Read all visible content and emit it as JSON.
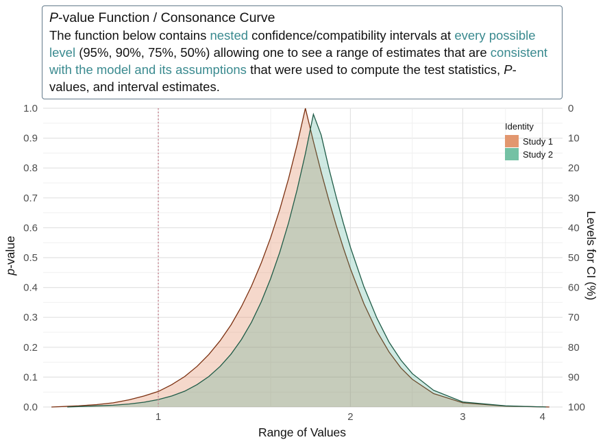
{
  "annotation": {
    "title_italic": "P",
    "title_rest": "-value Function / Consonance Curve",
    "body": [
      {
        "text": "The function below contains ",
        "hl": false
      },
      {
        "text": "nested",
        "hl": true
      },
      {
        "text": " confidence/compatibility intervals at ",
        "hl": false
      },
      {
        "text": "every possible level",
        "hl": true
      },
      {
        "text": " (95%, 90%, 75%, 50%) allowing one to see a range of estimates that are ",
        "hl": false
      },
      {
        "text": "consistent with the model and its assumptions",
        "hl": true
      },
      {
        "text": " that were used to compute the test statistics, ",
        "hl": false
      },
      {
        "text": "P",
        "hl": false,
        "italic": true
      },
      {
        "text": "-values, and interval estimates.",
        "hl": false
      }
    ]
  },
  "chart_data": {
    "type": "area",
    "title": "",
    "xlabel": "Range of Values",
    "ylabel_italic": "p",
    "ylabel_rest": "-value",
    "y2label": "Levels for CI (%)",
    "x_scale": "log",
    "xlim": [
      0.66,
      4.3
    ],
    "ylim": [
      0,
      1
    ],
    "x_ticks": [
      1,
      2,
      3,
      4
    ],
    "x_minor_ticks": [
      1.5,
      2.5,
      3.5
    ],
    "y_ticks": [
      0,
      0.1,
      0.2,
      0.3,
      0.4,
      0.5,
      0.6,
      0.7,
      0.8,
      0.9,
      1.0
    ],
    "y_tick_labels": [
      "0.0",
      "0.1",
      "0.2",
      "0.3",
      "0.4",
      "0.5",
      "0.6",
      "0.7",
      "0.8",
      "0.9",
      "1.0"
    ],
    "y2_tick_labels": [
      "100",
      "90",
      "80",
      "70",
      "60",
      "50",
      "40",
      "30",
      "20",
      "10",
      "0"
    ],
    "reference_line": {
      "x": 1,
      "style": "dotted",
      "color": "#c98a96"
    },
    "grid": true,
    "legend": {
      "title": "Identity",
      "position": "top-right"
    },
    "series": [
      {
        "name": "Study 1",
        "fill": "#e2906a",
        "fill_opacity": 0.35,
        "line": "#7a2e0e",
        "legend_swatch": "#e2976f",
        "x": [
          0.68,
          0.75,
          0.8,
          0.85,
          0.9,
          0.95,
          1.0,
          1.05,
          1.1,
          1.15,
          1.2,
          1.25,
          1.3,
          1.35,
          1.4,
          1.45,
          1.5,
          1.55,
          1.6,
          1.65,
          1.7,
          1.75,
          1.8,
          1.85,
          1.9,
          1.95,
          2.0,
          2.1,
          2.2,
          2.3,
          2.4,
          2.5,
          2.7,
          3.0,
          3.5,
          4.1
        ],
        "y": [
          0.0,
          0.004,
          0.008,
          0.014,
          0.024,
          0.037,
          0.052,
          0.075,
          0.102,
          0.136,
          0.176,
          0.222,
          0.275,
          0.336,
          0.405,
          0.482,
          0.567,
          0.661,
          0.765,
          0.878,
          1.0,
          0.889,
          0.786,
          0.693,
          0.608,
          0.532,
          0.463,
          0.346,
          0.254,
          0.184,
          0.131,
          0.093,
          0.045,
          0.014,
          0.003,
          0.0
        ]
      },
      {
        "name": "Study 2",
        "fill": "#3ca78a",
        "fill_opacity": 0.25,
        "line": "#1e5a46",
        "legend_swatch": "#74c1a4",
        "x": [
          0.72,
          0.8,
          0.85,
          0.9,
          0.95,
          1.0,
          1.05,
          1.1,
          1.15,
          1.2,
          1.25,
          1.3,
          1.35,
          1.4,
          1.45,
          1.5,
          1.55,
          1.6,
          1.65,
          1.7,
          1.75,
          1.8,
          1.85,
          1.9,
          1.95,
          2.0,
          2.1,
          2.2,
          2.3,
          2.4,
          2.5,
          2.7,
          3.0,
          3.5,
          4.05
        ],
        "y": [
          0.0,
          0.004,
          0.006,
          0.01,
          0.016,
          0.025,
          0.037,
          0.053,
          0.075,
          0.102,
          0.136,
          0.177,
          0.226,
          0.284,
          0.352,
          0.43,
          0.518,
          0.617,
          0.727,
          0.848,
          0.98,
          0.91,
          0.8,
          0.703,
          0.615,
          0.535,
          0.403,
          0.298,
          0.217,
          0.157,
          0.112,
          0.056,
          0.017,
          0.004,
          0.0
        ]
      }
    ]
  }
}
